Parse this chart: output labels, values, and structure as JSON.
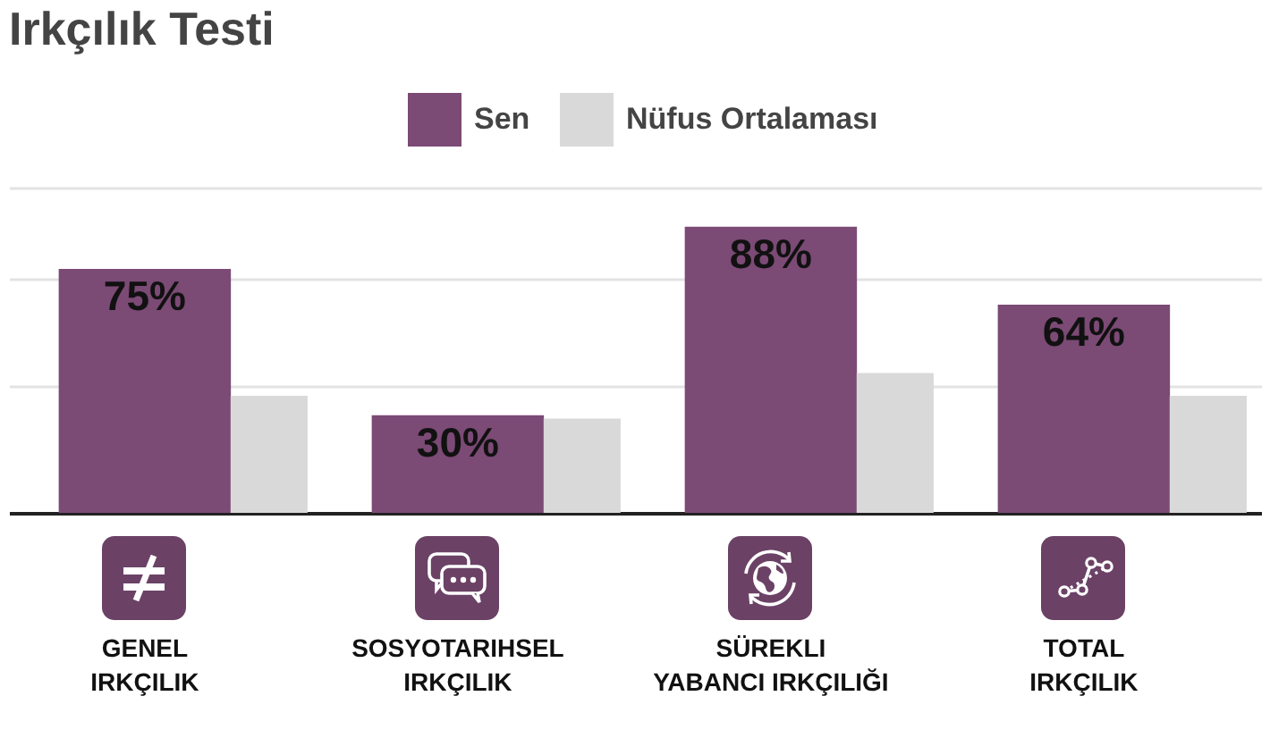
{
  "chart_data": {
    "type": "bar",
    "title": "Irkçılık Testi",
    "categories": [
      "GENEL IRKÇILIK",
      "SOSYOTARIHSEL IRKÇILIK",
      "SÜREKLI YABANCI IRKÇILIĞI",
      "TOTAL IRKÇILIK"
    ],
    "series": [
      {
        "name": "Sen",
        "color": "#7b4a75",
        "values": [
          75,
          30,
          88,
          64
        ],
        "value_labels": [
          "75%",
          "30%",
          "88%",
          "64%"
        ]
      },
      {
        "name": "Nüfus Ortalaması",
        "color": "#d9d9d9",
        "values": [
          36,
          29,
          43,
          36
        ]
      }
    ],
    "ylim": [
      0,
      100
    ],
    "yticks": [
      {
        "value": 39,
        "label": null
      },
      {
        "value": 72,
        "label": null
      },
      {
        "value": 100,
        "label": null
      }
    ],
    "grid": "y",
    "legend": "top",
    "tick_labels": "x"
  }
}
